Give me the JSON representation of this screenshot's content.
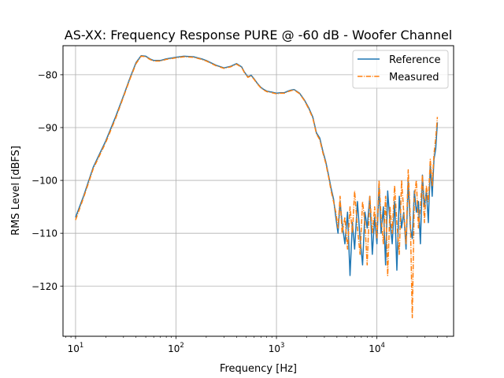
{
  "chart_data": {
    "type": "line",
    "title": "AS-XX: Frequency Response PURE @ -60 dB - Woofer Channel",
    "xlabel": "Frequency [Hz]",
    "ylabel": "RMS Level [dBFS]",
    "xscale": "log",
    "xlim": [
      7.5,
      58000
    ],
    "ylim": [
      -129.5,
      -74.5
    ],
    "grid": true,
    "legend_position": "top-right",
    "x_ticks": [
      {
        "value": 10,
        "base": "10",
        "exp": "1"
      },
      {
        "value": 100,
        "base": "10",
        "exp": "2"
      },
      {
        "value": 1000,
        "base": "10",
        "exp": "3"
      },
      {
        "value": 10000,
        "base": "10",
        "exp": "4"
      }
    ],
    "y_ticks": [
      {
        "value": -80,
        "label": "−80"
      },
      {
        "value": -90,
        "label": "−90"
      },
      {
        "value": -100,
        "label": "−100"
      },
      {
        "value": -110,
        "label": "−110"
      },
      {
        "value": -120,
        "label": "−120"
      }
    ],
    "series": [
      {
        "name": "Reference",
        "color": "#1f77b4",
        "dash": "solid",
        "x": [
          10,
          12,
          15,
          20,
          25,
          30,
          35,
          40,
          45,
          50,
          55,
          60,
          70,
          80,
          100,
          120,
          150,
          180,
          200,
          250,
          300,
          350,
          400,
          450,
          480,
          520,
          560,
          600,
          650,
          700,
          750,
          800,
          900,
          1000,
          1100,
          1200,
          1300,
          1400,
          1500,
          1700,
          1900,
          2100,
          2300,
          2500,
          2700,
          2900,
          3100,
          3300,
          3500,
          3700,
          3900,
          4100,
          4300,
          4500,
          4800,
          5100,
          5400,
          5700,
          6000,
          6400,
          6800,
          7200,
          7600,
          8000,
          8500,
          9000,
          9500,
          10000,
          10500,
          11000,
          11600,
          12200,
          12800,
          13500,
          14200,
          15000,
          15800,
          16700,
          17600,
          18500,
          19500,
          20500,
          21500,
          22500,
          23600,
          24700,
          25900,
          27100,
          28400,
          29700,
          31100,
          32500,
          34000,
          35500,
          37000,
          38500,
          40000
        ],
        "y": [
          -107,
          -103,
          -97.5,
          -92.5,
          -88,
          -84,
          -80.5,
          -77.7,
          -76.4,
          -76.5,
          -77,
          -77.3,
          -77.3,
          -77,
          -76.7,
          -76.5,
          -76.6,
          -77,
          -77.3,
          -78.2,
          -78.7,
          -78.4,
          -77.9,
          -78.5,
          -79.5,
          -80.4,
          -80.1,
          -80.8,
          -81.7,
          -82.4,
          -82.8,
          -83.1,
          -83.3,
          -83.5,
          -83.4,
          -83.4,
          -83.1,
          -82.9,
          -82.8,
          -83.5,
          -84.8,
          -86.3,
          -88,
          -91,
          -92,
          -94.5,
          -96.5,
          -99,
          -101.5,
          -103.5,
          -107,
          -110,
          -104,
          -108,
          -112,
          -106,
          -118,
          -108,
          -113,
          -104,
          -111,
          -116,
          -106,
          -109,
          -103,
          -114,
          -107,
          -112,
          -101,
          -110,
          -105,
          -116,
          -102,
          -108,
          -112,
          -104,
          -117,
          -103,
          -109,
          -106,
          -113,
          -100,
          -109,
          -111,
          -102,
          -106,
          -104,
          -112,
          -99,
          -105,
          -102,
          -108,
          -97,
          -103,
          -96,
          -94,
          -89
        ]
      },
      {
        "name": "Measured",
        "color": "#ff7f0e",
        "dash": "dashdot",
        "x": [
          10,
          12,
          15,
          20,
          25,
          30,
          35,
          40,
          45,
          50,
          55,
          60,
          70,
          80,
          100,
          120,
          150,
          180,
          200,
          250,
          300,
          350,
          400,
          450,
          480,
          520,
          560,
          600,
          650,
          700,
          750,
          800,
          900,
          1000,
          1100,
          1200,
          1300,
          1400,
          1500,
          1700,
          1900,
          2100,
          2300,
          2500,
          2700,
          2900,
          3100,
          3300,
          3500,
          3700,
          3900,
          4100,
          4300,
          4500,
          4800,
          5100,
          5400,
          5700,
          6000,
          6400,
          6800,
          7200,
          7600,
          8000,
          8500,
          9000,
          9500,
          10000,
          10500,
          11000,
          11600,
          12200,
          12800,
          13500,
          14200,
          15000,
          15800,
          16700,
          17600,
          18500,
          19500,
          20500,
          21500,
          22500,
          23600,
          24700,
          25900,
          27100,
          28400,
          29700,
          31100,
          32500,
          34000,
          35500,
          37000,
          38500,
          40000
        ],
        "y": [
          -107.5,
          -103.3,
          -97.8,
          -92.8,
          -88.3,
          -84.2,
          -80.7,
          -77.9,
          -76.5,
          -76.6,
          -77.1,
          -77.4,
          -77.4,
          -77.1,
          -76.8,
          -76.6,
          -76.7,
          -77.1,
          -77.4,
          -78.3,
          -78.8,
          -78.5,
          -78,
          -78.6,
          -79.6,
          -80.5,
          -80.2,
          -80.9,
          -81.8,
          -82.5,
          -82.9,
          -83.2,
          -83.4,
          -83.6,
          -83.5,
          -83.5,
          -83.2,
          -83,
          -82.9,
          -83.6,
          -84.9,
          -86.5,
          -88.2,
          -91.2,
          -92.3,
          -94.8,
          -96.8,
          -99.3,
          -102,
          -104,
          -106,
          -109,
          -103,
          -110,
          -107,
          -113,
          -105,
          -110,
          -102,
          -109,
          -114,
          -104,
          -108,
          -116,
          -103,
          -110,
          -105,
          -111,
          -100,
          -107,
          -112,
          -103,
          -118,
          -105,
          -110,
          -101,
          -108,
          -114,
          -100,
          -106,
          -112,
          -98,
          -107,
          -126,
          -103,
          -100,
          -109,
          -105,
          -99,
          -108,
          -101,
          -104,
          -96,
          -101,
          -95,
          -92,
          -88
        ]
      }
    ]
  }
}
